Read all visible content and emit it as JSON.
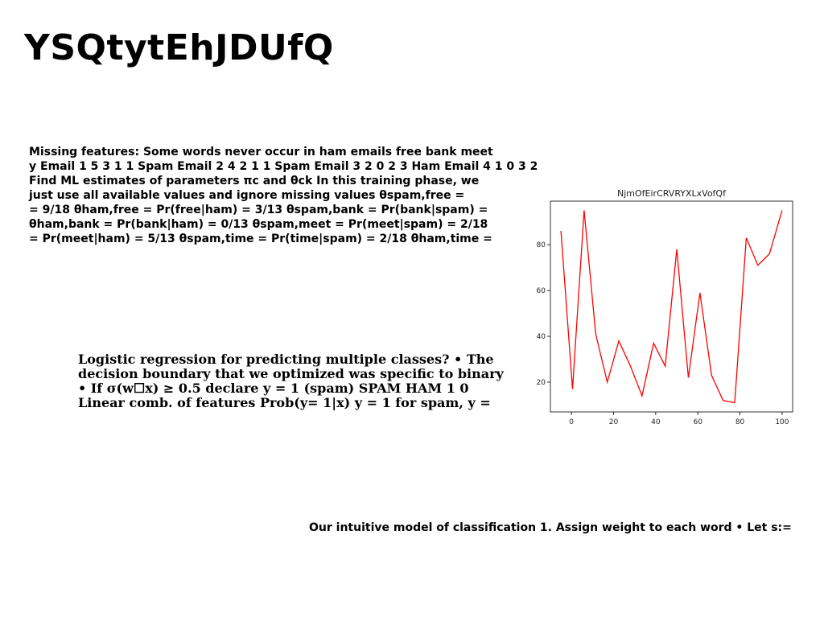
{
  "slide": {
    "title": "YSQtytEhJDUfQ",
    "paragraph1_lines": [
      "Missing features: Some words never occur in ham emails free bank meet",
      "y Email 1 5 3 1 1 Spam Email 2 4 2 1 1 Spam Email 3 2 0 2 3 Ham Email 4 1 0 3 2",
      "Find ML estimates of parameters πc and θck In this training phase, we",
      "just use all available values and ignore missing values θspam,free =",
      "= 9/18 θham,free = Pr(free|ham) = 3/13 θspam,bank = Pr(bank|spam) =",
      "θham,bank = Pr(bank|ham) = 0/13 θspam,meet = Pr(meet|spam) = 2/18",
      "= Pr(meet|ham) = 5/13 θspam,time = Pr(time|spam) = 2/18 θham,time ="
    ],
    "paragraph2_lines": [
      "Logistic regression for predicting multiple classes? • The",
      "decision boundary that we optimized was specific to binary",
      "• If σ(w☐x) ≥ 0.5 declare y = 1 (spam) SPAM HAM 1 0",
      "Linear comb. of features Prob(y= 1|x) y = 1 for spam, y ="
    ],
    "paragraph3": "Our intuitive model of classification 1. Assign weight to each word • Let s:="
  },
  "chart_data": {
    "type": "line",
    "title": "NjmOfEirCRVRYXLxVofQf",
    "xlabel": "",
    "ylabel": "",
    "x": [
      -5,
      0.5,
      6,
      11.5,
      17,
      22.5,
      28,
      33.5,
      39,
      44.5,
      50,
      55.5,
      61,
      66.5,
      72,
      77.5,
      83,
      88.5,
      94,
      100
    ],
    "series": [
      {
        "values": [
          86,
          17,
          95,
          41,
          20,
          38,
          27,
          14,
          37,
          27,
          78,
          22,
          59,
          23,
          12,
          11,
          83,
          71,
          76,
          95
        ],
        "color": "#ff0000"
      }
    ],
    "xlim": [
      -10,
      105
    ],
    "ylim": [
      7,
      99
    ],
    "xticks": [
      "0",
      "20",
      "40",
      "60",
      "80",
      "100"
    ],
    "yticks": [
      "20",
      "40",
      "60",
      "80"
    ],
    "grid": false
  }
}
